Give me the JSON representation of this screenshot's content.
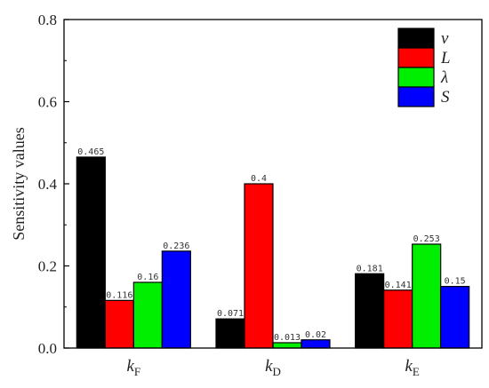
{
  "chart_data": {
    "type": "bar",
    "ylabel": "Sensitivity values",
    "ylim": [
      0,
      0.8
    ],
    "yticks": [
      "0.0",
      "0.2",
      "0.4",
      "0.6",
      "0.8"
    ],
    "categories": [
      {
        "main": "k",
        "sub": "F"
      },
      {
        "main": "k",
        "sub": "D"
      },
      {
        "main": "k",
        "sub": "E"
      }
    ],
    "series": [
      {
        "name": "v",
        "color": "#000000",
        "values": [
          0.465,
          0.071,
          0.181
        ],
        "labels": [
          "0.465",
          "0.071",
          "0.181"
        ]
      },
      {
        "name": "L",
        "color": "#ff0000",
        "values": [
          0.116,
          0.4,
          0.141
        ],
        "labels": [
          "0.116",
          "0.4",
          "0.141"
        ]
      },
      {
        "name": "λ",
        "color": "#00ee00",
        "values": [
          0.16,
          0.013,
          0.253
        ],
        "labels": [
          "0.16",
          "0.013",
          "0.253"
        ]
      },
      {
        "name": "S",
        "color": "#0000ff",
        "values": [
          0.236,
          0.02,
          0.15
        ],
        "labels": [
          "0.236",
          "0.02",
          "0.15"
        ]
      }
    ],
    "grid": false,
    "legend_position": "top-right"
  }
}
